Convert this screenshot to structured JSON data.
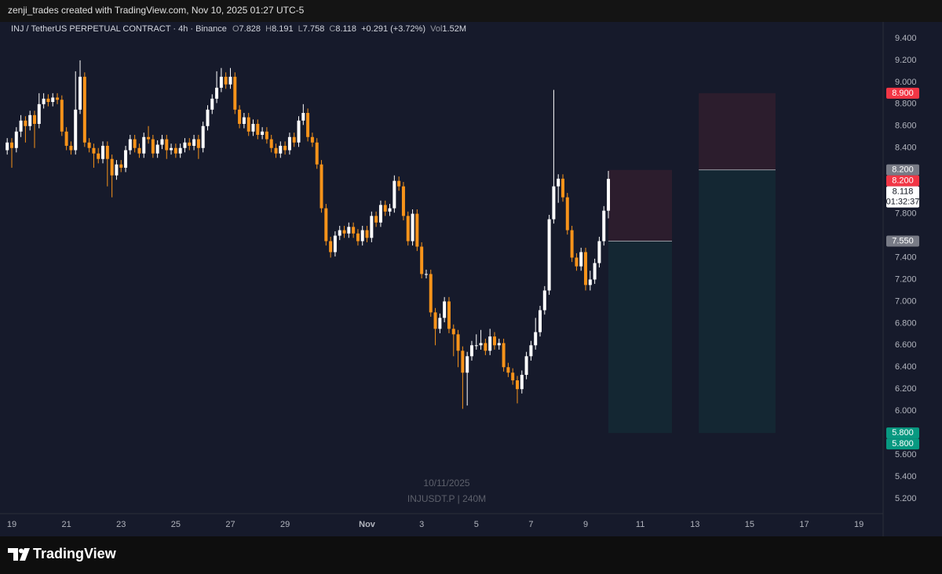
{
  "attribution": "zenji_trades created with TradingView.com, Nov 10, 2025 01:27 UTC-5",
  "footer": {
    "brand": "TradingView"
  },
  "chart_data": {
    "type": "candlestick",
    "title": "INJ / TetherUS PERPETUAL CONTRACT · 4h · Binance",
    "ohlc_legend": [
      {
        "key": "O",
        "value": "7.828"
      },
      {
        "key": "H",
        "value": "8.191"
      },
      {
        "key": "L",
        "value": "7.758"
      },
      {
        "key": "C",
        "value": "8.118"
      }
    ],
    "change": "+0.291 (+3.72%)",
    "volume": {
      "key": "Vol",
      "value": "1.52M"
    },
    "watermark": [
      "10/11/2025",
      "INJUSDT.P | 240M"
    ],
    "up_color": "#ffffff",
    "down_color": "#f7931a",
    "xlim": [
      18.569,
      50.887
    ],
    "xticks": [
      19,
      21,
      23,
      25,
      27,
      29,
      {
        "value": 32,
        "label": "Nov"
      },
      {
        "value": 34,
        "label": "3"
      },
      {
        "value": 36,
        "label": "5"
      },
      {
        "value": 38,
        "label": "7"
      },
      {
        "value": 40,
        "label": "9"
      },
      {
        "value": 42,
        "label": "11"
      },
      {
        "value": 44,
        "label": "13"
      },
      {
        "value": 46,
        "label": "15"
      },
      {
        "value": 48,
        "label": "17"
      },
      {
        "value": 50,
        "label": "19"
      }
    ],
    "ylim": [
      5.064,
      9.55
    ],
    "yticks": [
      {
        "value": 9.4,
        "label": "9.400"
      },
      {
        "value": 9.2,
        "label": "9.200"
      },
      {
        "value": 9.0,
        "label": "9.000"
      },
      {
        "value": 8.8,
        "label": "8.800"
      },
      {
        "value": 8.6,
        "label": "8.600"
      },
      {
        "value": 8.4,
        "label": "8.400"
      },
      {
        "value": 7.8,
        "label": "7.800"
      },
      {
        "value": 7.4,
        "label": "7.400"
      },
      {
        "value": 7.2,
        "label": "7.200"
      },
      {
        "value": 7.0,
        "label": "7.000"
      },
      {
        "value": 6.8,
        "label": "6.800"
      },
      {
        "value": 6.6,
        "label": "6.600"
      },
      {
        "value": 6.4,
        "label": "6.400"
      },
      {
        "value": 6.2,
        "label": "6.200"
      },
      {
        "value": 6.0,
        "label": "6.000"
      },
      {
        "value": 5.6,
        "label": "5.600"
      },
      {
        "value": 5.4,
        "label": "5.400"
      },
      {
        "value": 5.2,
        "label": "5.200"
      }
    ],
    "x": [
      18.833,
      19,
      19.167,
      19.333,
      19.5,
      19.667,
      19.833,
      20,
      20.167,
      20.333,
      20.5,
      20.667,
      20.833,
      21,
      21.167,
      21.333,
      21.5,
      21.667,
      21.833,
      22,
      22.167,
      22.333,
      22.5,
      22.667,
      22.833,
      23,
      23.167,
      23.333,
      23.5,
      23.667,
      23.833,
      24,
      24.167,
      24.333,
      24.5,
      24.667,
      24.833,
      25,
      25.167,
      25.333,
      25.5,
      25.667,
      25.833,
      26,
      26.167,
      26.333,
      26.5,
      26.667,
      26.833,
      27,
      27.167,
      27.333,
      27.5,
      27.667,
      27.833,
      28,
      28.167,
      28.333,
      28.5,
      28.667,
      28.833,
      29,
      29.167,
      29.333,
      29.5,
      29.667,
      29.833,
      30,
      30.167,
      30.333,
      30.5,
      30.667,
      30.833,
      31,
      31.167,
      31.333,
      31.5,
      31.667,
      31.833,
      32,
      32.167,
      32.333,
      32.5,
      32.667,
      32.833,
      33,
      33.167,
      33.333,
      33.5,
      33.667,
      33.833,
      34,
      34.167,
      34.333,
      34.5,
      34.667,
      34.833,
      35,
      35.167,
      35.333,
      35.5,
      35.667,
      35.833,
      36,
      36.167,
      36.333,
      36.5,
      36.667,
      36.833,
      37,
      37.167,
      37.333,
      37.5,
      37.667,
      37.833,
      38,
      38.167,
      38.333,
      38.5,
      38.667,
      38.833,
      39,
      39.167,
      39.333,
      39.5,
      39.667,
      39.833,
      40,
      40.167,
      40.333,
      40.5,
      40.667,
      40.833
    ],
    "open": [
      8.38,
      8.45,
      8.4,
      8.55,
      8.65,
      8.6,
      8.7,
      8.62,
      8.8,
      8.85,
      8.82,
      8.86,
      8.84,
      8.55,
      8.42,
      8.38,
      8.75,
      9.05,
      8.45,
      8.4,
      8.35,
      8.3,
      8.42,
      8.3,
      8.15,
      8.25,
      8.22,
      8.38,
      8.48,
      8.4,
      8.35,
      8.5,
      8.48,
      8.35,
      8.43,
      8.48,
      8.38,
      8.4,
      8.35,
      8.4,
      8.45,
      8.42,
      8.48,
      8.4,
      8.6,
      8.75,
      8.85,
      8.95,
      9.05,
      8.98,
      9.05,
      8.75,
      8.62,
      8.68,
      8.55,
      8.62,
      8.52,
      8.55,
      8.48,
      8.4,
      8.35,
      8.42,
      8.38,
      8.5,
      8.45,
      8.65,
      8.72,
      8.5,
      8.45,
      8.25,
      7.85,
      7.55,
      7.45,
      7.6,
      7.65,
      7.62,
      7.68,
      7.62,
      7.55,
      7.65,
      7.58,
      7.78,
      7.72,
      7.88,
      7.82,
      7.85,
      8.1,
      8.05,
      7.78,
      7.55,
      7.8,
      7.5,
      7.25,
      7.25,
      6.9,
      6.75,
      6.85,
      7.0,
      6.75,
      6.7,
      6.55,
      6.35,
      6.5,
      6.6,
      6.6,
      6.62,
      6.55,
      6.68,
      6.6,
      6.62,
      6.4,
      6.35,
      6.28,
      6.2,
      6.33,
      6.5,
      6.6,
      6.72,
      6.92,
      7.1,
      7.75,
      8.05,
      8.12,
      7.95,
      7.65,
      7.4,
      7.32,
      7.45,
      7.15,
      7.2,
      7.35,
      7.55,
      7.828
    ],
    "high": [
      8.49,
      8.49,
      8.59,
      8.7,
      8.69,
      8.74,
      8.74,
      8.9,
      8.9,
      8.89,
      8.9,
      8.9,
      8.88,
      8.59,
      8.46,
      9.1,
      9.2,
      9.09,
      8.49,
      8.44,
      8.4,
      8.46,
      8.46,
      8.34,
      8.29,
      8.29,
      8.42,
      8.52,
      8.52,
      8.44,
      8.54,
      8.6,
      8.52,
      8.47,
      8.52,
      8.52,
      8.44,
      8.44,
      8.44,
      8.49,
      8.49,
      8.52,
      8.52,
      8.64,
      8.79,
      8.89,
      9.1,
      9.13,
      9.09,
      9.13,
      9.09,
      8.79,
      8.72,
      8.72,
      8.66,
      8.66,
      8.59,
      8.59,
      8.52,
      8.44,
      8.46,
      8.46,
      8.54,
      8.54,
      8.69,
      8.8,
      8.76,
      8.54,
      8.49,
      8.29,
      7.89,
      7.59,
      7.64,
      7.69,
      7.69,
      7.72,
      7.72,
      7.66,
      7.69,
      7.69,
      7.82,
      7.82,
      7.92,
      7.92,
      7.89,
      8.15,
      8.14,
      8.09,
      7.82,
      7.84,
      7.84,
      7.54,
      7.29,
      7.29,
      6.94,
      6.89,
      7.04,
      7.04,
      6.79,
      6.74,
      6.59,
      6.54,
      6.64,
      6.7,
      6.74,
      6.66,
      6.75,
      6.72,
      6.66,
      6.66,
      6.44,
      6.39,
      6.32,
      6.37,
      6.54,
      6.64,
      6.85,
      6.96,
      7.14,
      7.79,
      8.93,
      8.16,
      8.16,
      7.99,
      7.69,
      7.44,
      7.49,
      7.49,
      7.28,
      7.39,
      7.59,
      7.87,
      8.191
    ],
    "low": [
      8.34,
      8.22,
      8.36,
      8.5,
      8.45,
      8.56,
      8.4,
      8.58,
      8.76,
      8.78,
      8.78,
      8.8,
      8.51,
      8.38,
      8.34,
      8.34,
      8.71,
      8.41,
      8.36,
      8.22,
      8.26,
      8.26,
      8.05,
      7.95,
      8.11,
      8.18,
      8.18,
      8.34,
      8.36,
      8.31,
      8.31,
      8.44,
      8.31,
      8.31,
      8.39,
      8.3,
      8.34,
      8.31,
      8.31,
      8.36,
      8.38,
      8.38,
      8.3,
      8.36,
      8.56,
      8.71,
      8.81,
      8.91,
      8.94,
      8.94,
      8.71,
      8.58,
      8.58,
      8.51,
      8.51,
      8.48,
      8.48,
      8.44,
      8.36,
      8.31,
      8.31,
      8.34,
      8.34,
      8.41,
      8.41,
      8.61,
      8.46,
      8.41,
      8.21,
      7.81,
      7.51,
      7.4,
      7.41,
      7.56,
      7.58,
      7.58,
      7.58,
      7.51,
      7.51,
      7.54,
      7.54,
      7.68,
      7.68,
      7.78,
      7.78,
      7.81,
      8.01,
      7.74,
      7.51,
      7.51,
      7.46,
      7.21,
      7.21,
      6.86,
      6.6,
      6.71,
      6.81,
      6.71,
      6.5,
      6.4,
      6.02,
      6.05,
      6.46,
      6.56,
      6.56,
      6.51,
      6.51,
      6.56,
      6.56,
      6.36,
      6.31,
      6.24,
      6.07,
      6.16,
      6.29,
      6.46,
      6.56,
      6.68,
      6.88,
      7.06,
      7.71,
      7.9,
      7.91,
      7.61,
      7.36,
      7.28,
      7.28,
      7.1,
      7.1,
      7.16,
      7.31,
      7.51,
      7.758
    ],
    "close": [
      8.45,
      8.4,
      8.55,
      8.65,
      8.6,
      8.7,
      8.62,
      8.8,
      8.85,
      8.82,
      8.86,
      8.84,
      8.55,
      8.42,
      8.38,
      8.75,
      9.05,
      8.45,
      8.4,
      8.35,
      8.3,
      8.42,
      8.3,
      8.15,
      8.25,
      8.22,
      8.38,
      8.48,
      8.4,
      8.35,
      8.5,
      8.48,
      8.35,
      8.43,
      8.48,
      8.38,
      8.4,
      8.35,
      8.4,
      8.45,
      8.42,
      8.48,
      8.4,
      8.6,
      8.75,
      8.85,
      8.95,
      9.05,
      8.98,
      9.05,
      8.75,
      8.62,
      8.68,
      8.55,
      8.62,
      8.52,
      8.55,
      8.48,
      8.4,
      8.35,
      8.42,
      8.38,
      8.5,
      8.45,
      8.65,
      8.72,
      8.5,
      8.45,
      8.25,
      7.85,
      7.55,
      7.45,
      7.6,
      7.65,
      7.62,
      7.68,
      7.62,
      7.55,
      7.65,
      7.58,
      7.78,
      7.72,
      7.88,
      7.82,
      7.85,
      8.1,
      8.05,
      7.78,
      7.55,
      7.8,
      7.5,
      7.25,
      7.25,
      6.9,
      6.75,
      6.85,
      7.0,
      6.75,
      6.7,
      6.55,
      6.35,
      6.5,
      6.6,
      6.6,
      6.62,
      6.55,
      6.68,
      6.6,
      6.62,
      6.4,
      6.35,
      6.28,
      6.2,
      6.33,
      6.5,
      6.6,
      6.72,
      6.92,
      7.1,
      7.75,
      8.05,
      8.12,
      7.95,
      7.65,
      7.4,
      7.32,
      7.45,
      7.15,
      7.2,
      7.35,
      7.55,
      7.828,
      8.118
    ],
    "positions": [
      {
        "x": [
          40.83,
          43.16
        ],
        "entry": 7.55,
        "stop": 8.2,
        "target": 5.8
      },
      {
        "x": [
          44.14,
          46.95
        ],
        "entry": 8.2,
        "stop": 8.9,
        "target": 5.8
      }
    ],
    "stop_color": "#f23645",
    "target_color": "#089981",
    "price_labels": [
      {
        "value": 8.9,
        "label": "8.900",
        "color": "#f23645"
      },
      {
        "value": 8.2,
        "label": "8.200",
        "color": "#787b86"
      },
      {
        "value": 8.2,
        "label": "8.200",
        "color": "#f23645"
      },
      {
        "value": 8.118,
        "label": "8.118",
        "countdown": "01:32:37",
        "color": "#ffffff"
      },
      {
        "value": 7.55,
        "label": "7.550",
        "color": "#787b86"
      },
      {
        "value": 5.8,
        "label": "5.800",
        "color": "#089981"
      },
      {
        "value": 5.8,
        "label": "5.800",
        "color": "#089981"
      }
    ]
  }
}
